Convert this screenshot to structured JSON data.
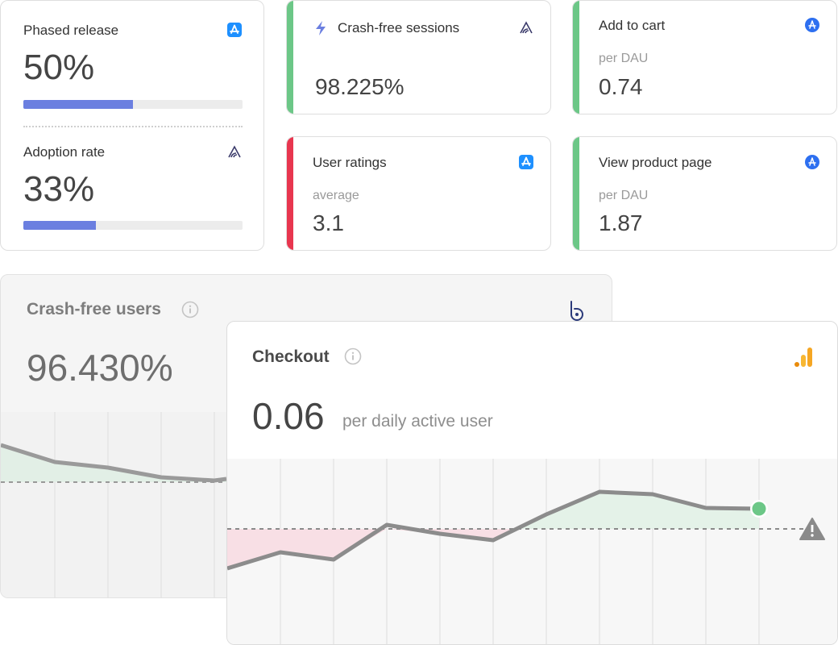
{
  "release_card": {
    "phased_label": "Phased release",
    "phased_value": "50%",
    "phased_fraction": 0.5,
    "phased_icon": "app-store-icon",
    "adoption_label": "Adoption rate",
    "adoption_value": "33%",
    "adoption_fraction": 0.33,
    "adoption_icon": "sentry-icon"
  },
  "metric_cards": [
    {
      "title": "Crash-free sessions",
      "subtitle": "",
      "value": "98.225%",
      "icon": "sentry-icon",
      "leading_icon": "lightning-icon",
      "accent": "#6cc787"
    },
    {
      "title": "Add to cart",
      "subtitle": "per DAU",
      "value": "0.74",
      "icon": "google-play-icon",
      "accent": "#6cc787"
    },
    {
      "title": "User ratings",
      "subtitle": "average",
      "value": "3.1",
      "icon": "app-store-icon",
      "accent": "#e8364f"
    },
    {
      "title": "View product page",
      "subtitle": "per DAU",
      "value": "1.87",
      "icon": "google-play-icon",
      "accent": "#6cc787"
    }
  ],
  "crash_free_users": {
    "title": "Crash-free users",
    "value": "96.430%",
    "icon": "bugsnag-icon"
  },
  "checkout": {
    "title": "Checkout",
    "value": "0.06",
    "unit": "per daily active user",
    "icon": "google-analytics-icon",
    "status_icon": "warning-icon"
  },
  "colors": {
    "green": "#6cc787",
    "red": "#e8364f",
    "progress": "#6b7fe0",
    "line": "#8c8c8c"
  }
}
